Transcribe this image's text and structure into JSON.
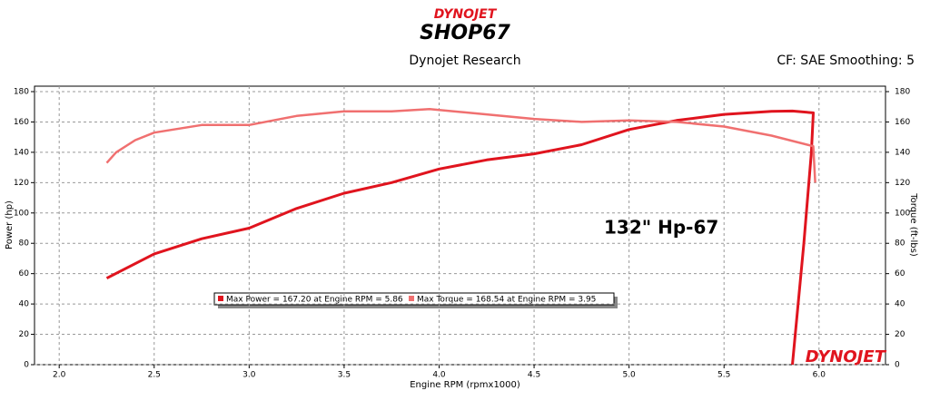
{
  "chart_data": {
    "type": "line",
    "logo_top": "DYNOJET",
    "logo_bottom": "SHOP67",
    "title": "Dynojet Research",
    "subtitle": "CF: SAE Smoothing: 5",
    "annotation": "132\" Hp-67",
    "watermark": "DYNOJET",
    "x_label": "Engine RPM (rpmx1000)",
    "y_label": "Power (hp)",
    "y2_label": "Torque (ft-lbs)",
    "xlim": [
      1.87,
      6.35
    ],
    "ylim": [
      0,
      180
    ],
    "y2lim": [
      0,
      180
    ],
    "xticks": [
      {
        "value": 2,
        "label": "2.0"
      },
      {
        "value": 2.5,
        "label": "2.5"
      },
      {
        "value": 3,
        "label": "3.0"
      },
      {
        "value": 3.5,
        "label": "3.5"
      },
      {
        "value": 4,
        "label": "4.0"
      },
      {
        "value": 4.5,
        "label": "4.5"
      },
      {
        "value": 5,
        "label": "5.0"
      },
      {
        "value": 5.5,
        "label": "5.5"
      },
      {
        "value": 6,
        "label": "6.0"
      }
    ],
    "yticks": [
      0,
      20,
      40,
      60,
      80,
      100,
      120,
      140,
      160,
      180
    ],
    "y2ticks": [
      0,
      20,
      40,
      60,
      80,
      100,
      120,
      140,
      160,
      180
    ],
    "grid": true,
    "series": [
      {
        "name": "Max Power = 167.20 at Engine RPM = 5.86",
        "color": "#e0141e",
        "axis": "y",
        "x": [
          2.25,
          2.5,
          2.75,
          3.0,
          3.25,
          3.5,
          3.75,
          4.0,
          4.25,
          4.5,
          4.75,
          5.0,
          5.25,
          5.5,
          5.75,
          5.86,
          5.97,
          5.96,
          5.92,
          5.86
        ],
        "values": [
          57,
          73,
          83,
          90,
          103,
          113,
          120,
          129,
          135,
          139,
          145,
          155,
          161,
          165,
          167,
          167.2,
          166,
          140,
          80,
          0
        ]
      },
      {
        "name": "Max Torque = 168.54 at Engine RPM = 3.95",
        "color": "#f07070",
        "axis": "y2",
        "x": [
          2.25,
          2.3,
          2.4,
          2.5,
          2.75,
          3.0,
          3.25,
          3.5,
          3.75,
          3.95,
          4.25,
          4.5,
          4.75,
          5.0,
          5.25,
          5.5,
          5.75,
          5.97,
          5.98
        ],
        "values": [
          133,
          140,
          148,
          153,
          158,
          158,
          164,
          167,
          167,
          168.5,
          165,
          162,
          160,
          161,
          160,
          157,
          151,
          144,
          120
        ]
      }
    ]
  }
}
